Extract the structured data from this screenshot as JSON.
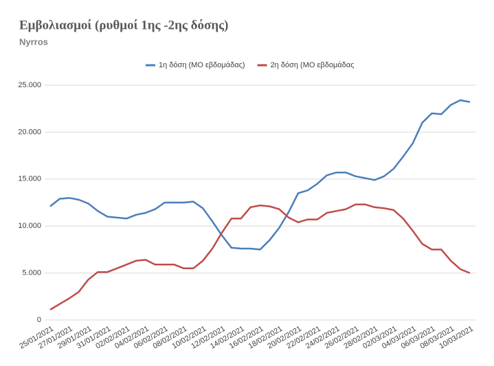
{
  "chart_data": {
    "type": "line",
    "title": "Εμβολιασμοί (ρυθμοί 1ης -2ης δόσης)",
    "subtitle": "Nyrros",
    "categories": [
      "25/01/2021",
      null,
      "27/01/2021",
      null,
      "29/01/2021",
      null,
      "31/01/2021",
      null,
      "02/02/2021",
      null,
      "04/02/2021",
      null,
      "06/02/2021",
      null,
      "08/02/2021",
      null,
      "10/02/2021",
      null,
      "12/02/2021",
      null,
      "14/02/2021",
      null,
      "16/02/2021",
      null,
      "18/02/2021",
      null,
      "20/02/2021",
      null,
      "22/02/2021",
      null,
      "24/02/2021",
      null,
      "26/02/2021",
      null,
      "28/02/2021",
      null,
      "02/03/2021",
      null,
      "04/03/2021",
      null,
      "06/03/2021",
      null,
      "08/03/2021",
      null,
      "10/03/2021"
    ],
    "series": [
      {
        "name": "1η δόση (ΜΟ εβδομάδας)",
        "color": "#4a7ebb",
        "values": [
          12100,
          12900,
          13000,
          12800,
          12400,
          11600,
          11000,
          10900,
          10800,
          11200,
          11400,
          11800,
          12500,
          12500,
          12500,
          12600,
          11900,
          10500,
          9000,
          7700,
          7600,
          7600,
          7500,
          8500,
          9800,
          11500,
          13500,
          13800,
          14500,
          15400,
          15700,
          15700,
          15300,
          15100,
          14900,
          15300,
          16100,
          17400,
          18800,
          21000,
          22000,
          21900,
          22900,
          23400,
          23200
        ]
      },
      {
        "name": "2η δόση (ΜΟ εβδομάδας",
        "color": "#be4b48",
        "values": [
          1100,
          1700,
          2300,
          3000,
          4300,
          5100,
          5100,
          5500,
          5900,
          6300,
          6400,
          5900,
          5900,
          5900,
          5500,
          5500,
          6300,
          7600,
          9300,
          10800,
          10800,
          12000,
          12200,
          12100,
          11800,
          10900,
          10400,
          10700,
          10700,
          11400,
          11600,
          11800,
          12300,
          12300,
          12000,
          11900,
          11700,
          10800,
          9500,
          8100,
          7500,
          7500,
          6300,
          5400,
          5000
        ]
      }
    ],
    "ylim": [
      0,
      25000
    ],
    "yticks": [
      0,
      {
        "value": 5000,
        "label": "5.000"
      },
      {
        "value": 10000,
        "label": "10.000"
      },
      {
        "value": 15000,
        "label": "15.000"
      },
      {
        "value": 20000,
        "label": "20.000"
      },
      {
        "value": 25000,
        "label": "25.000"
      }
    ],
    "grid": true,
    "legend": "top"
  }
}
